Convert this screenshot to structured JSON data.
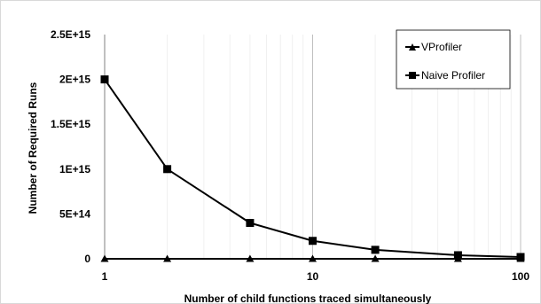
{
  "chart_data": {
    "type": "line",
    "x_scale": "log",
    "x": [
      1,
      2,
      5,
      10,
      20,
      50,
      100
    ],
    "x_ticks": [
      1,
      10,
      100
    ],
    "x_tick_labels": [
      "1",
      "10",
      "100"
    ],
    "xlim": [
      1,
      100
    ],
    "ylim": [
      0,
      2500000000000000
    ],
    "y_ticks": [
      0,
      500000000000000,
      1000000000000000,
      1500000000000000,
      2000000000000000,
      2500000000000000
    ],
    "y_tick_labels": [
      "0",
      "5E+14",
      "1E+15",
      "1.5E+15",
      "2E+15",
      "2.5E+15"
    ],
    "xlabel": "Number of child functions traced simultaneously",
    "ylabel": "Number of Required Runs",
    "grid": "vertical",
    "legend_position": "top-right",
    "series": [
      {
        "name": "VProfiler",
        "marker": "triangle",
        "color": "#000000",
        "values": [
          0,
          0,
          0,
          0,
          0,
          0,
          0
        ]
      },
      {
        "name": "Naive Profiler",
        "marker": "square",
        "color": "#000000",
        "values": [
          2000000000000000,
          1000000000000000,
          400000000000000,
          200000000000000,
          100000000000000,
          40000000000000,
          20000000000000
        ]
      }
    ]
  }
}
